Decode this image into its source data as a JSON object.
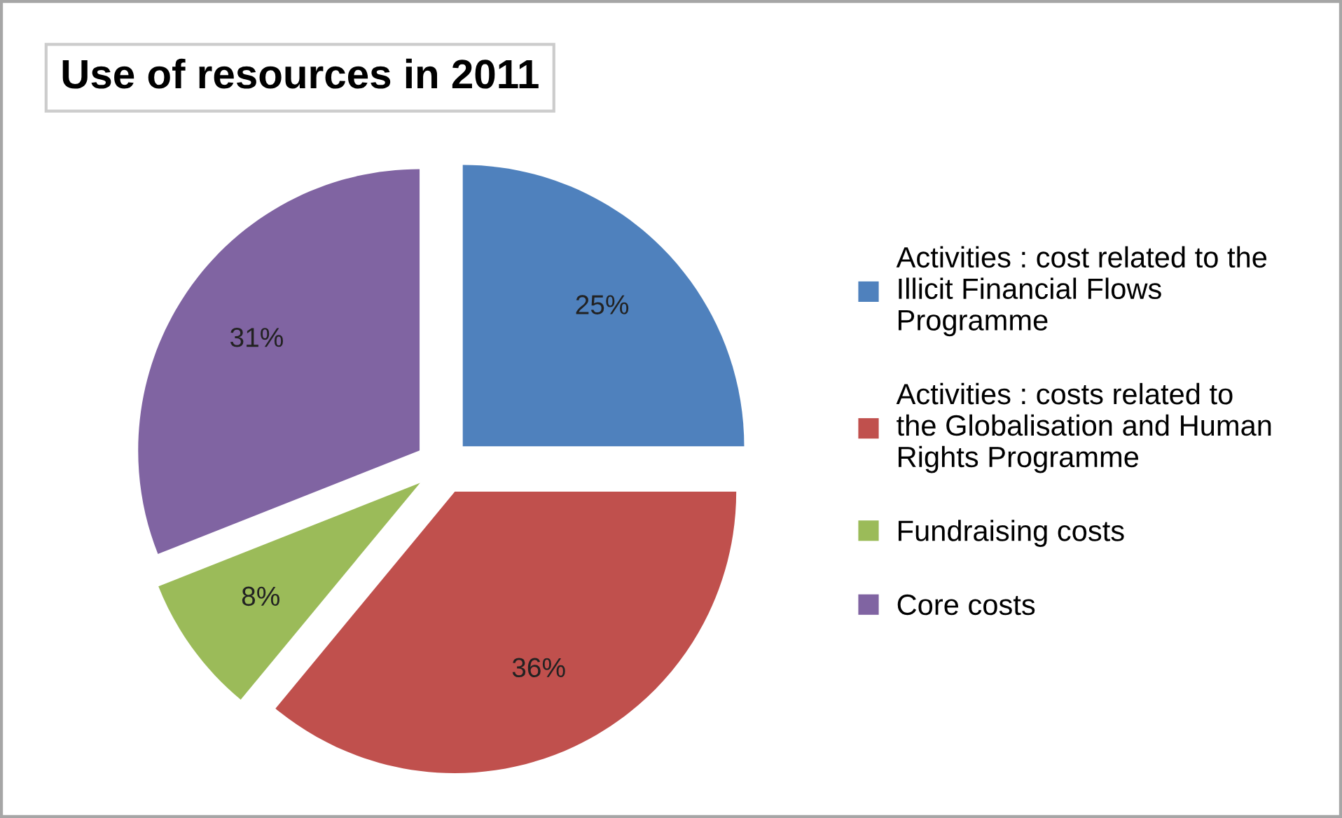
{
  "chart_data": {
    "type": "pie",
    "title": "Use of resources in 2011",
    "categories": [
      "Activities : cost related to the Illicit Financial Flows Programme",
      "Activities : costs related to the Globalisation and Human Rights Programme",
      "Fundraising costs",
      "Core costs"
    ],
    "values": [
      25,
      36,
      8,
      31
    ],
    "colors": [
      "#4f81bd",
      "#c0504d",
      "#9bbb59",
      "#8064a2"
    ],
    "value_labels": [
      "25%",
      "36%",
      "8%",
      "31%"
    ],
    "legend": "right"
  }
}
